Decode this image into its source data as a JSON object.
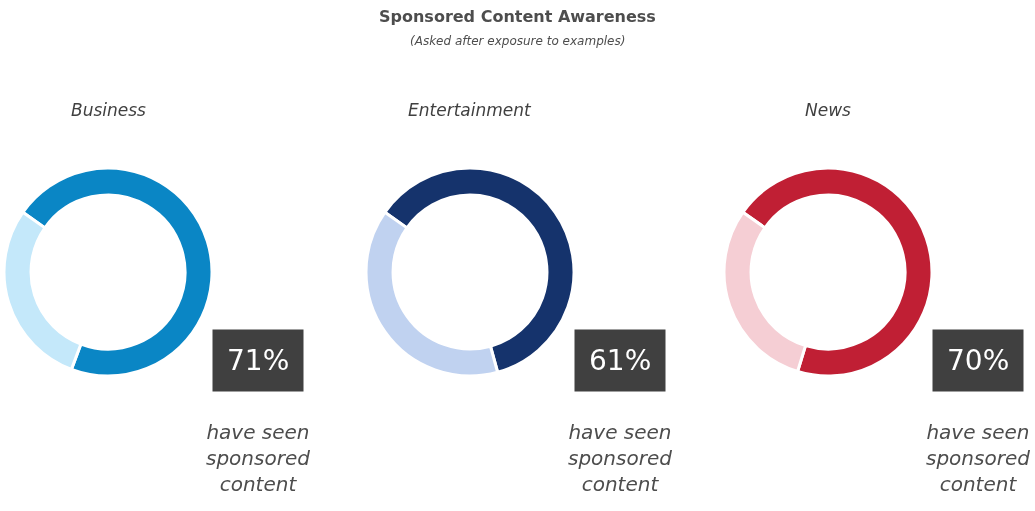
{
  "chart_data": [
    {
      "type": "other",
      "title": "Sponsored Content Awareness",
      "subtitle": "(Asked after exposure to examples)"
    },
    {
      "type": "donut",
      "title": "Business",
      "categories": [
        null,
        null
      ],
      "values": [
        71,
        29
      ],
      "colors": [
        "#0a86c5",
        "#c4e8fa"
      ],
      "value_labels": [
        "71%",
        null
      ],
      "annotations": [
        "have seen sponsored content"
      ]
    },
    {
      "type": "donut",
      "title": "Entertainment",
      "categories": [
        null,
        null
      ],
      "values": [
        61,
        39
      ],
      "colors": [
        "#15336c",
        "#c0d2f0"
      ],
      "value_labels": [
        "61%",
        null
      ],
      "annotations": [
        "have seen sponsored content"
      ]
    },
    {
      "type": "donut",
      "title": "News",
      "categories": [
        null,
        null
      ],
      "values": [
        70,
        30
      ],
      "colors": [
        "#c01f34",
        "#f5ced4"
      ],
      "value_labels": [
        "70%",
        null
      ],
      "annotations": [
        "have seen sponsored content"
      ]
    }
  ]
}
